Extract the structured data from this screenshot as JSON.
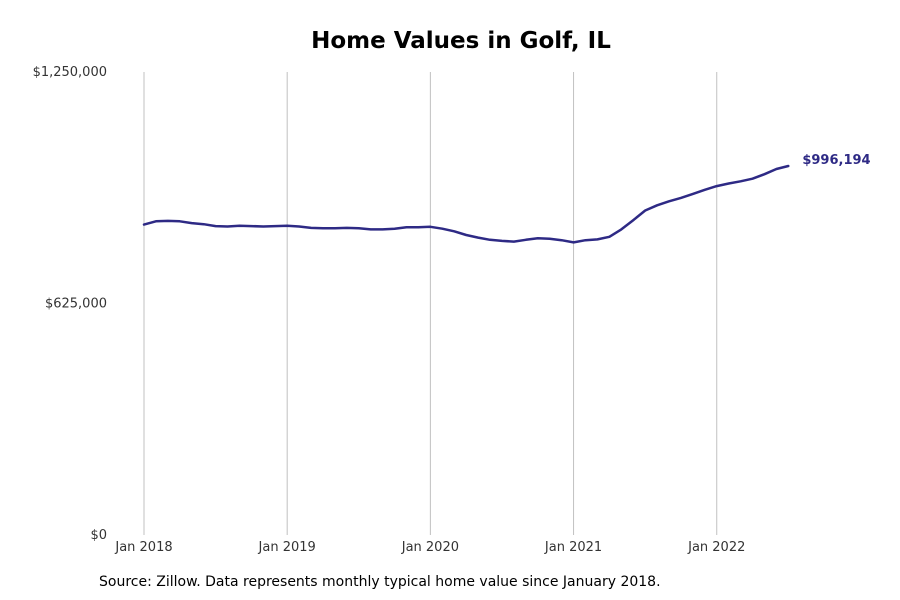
{
  "chart_data": {
    "type": "line",
    "title": "Home Values in Golf, IL",
    "xlabel": "",
    "ylabel": "",
    "xlim": [
      "2018-01",
      "2022-12"
    ],
    "ylim": [
      0,
      1250000
    ],
    "grid": {
      "x": true,
      "y": false
    },
    "legend": "none",
    "x_ticks": [
      "Jan 2018",
      "Jan 2019",
      "Jan 2020",
      "Jan 2021",
      "Jan 2022"
    ],
    "y_ticks": [
      "$0",
      "$625,000",
      "$1,250,000"
    ],
    "series": [
      {
        "color": "#2e2a85",
        "end_label": "$996,194",
        "x": [
          "2018-01",
          "2018-02",
          "2018-03",
          "2018-04",
          "2018-05",
          "2018-06",
          "2018-07",
          "2018-08",
          "2018-09",
          "2018-10",
          "2018-11",
          "2018-12",
          "2019-01",
          "2019-02",
          "2019-03",
          "2019-04",
          "2019-05",
          "2019-06",
          "2019-07",
          "2019-08",
          "2019-09",
          "2019-10",
          "2019-11",
          "2019-12",
          "2020-01",
          "2020-02",
          "2020-03",
          "2020-04",
          "2020-05",
          "2020-06",
          "2020-07",
          "2020-08",
          "2020-09",
          "2020-10",
          "2020-11",
          "2020-12",
          "2021-01",
          "2021-02",
          "2021-03",
          "2021-04",
          "2021-05",
          "2021-06",
          "2021-07",
          "2021-08",
          "2021-09",
          "2021-10",
          "2021-11",
          "2021-12",
          "2022-01",
          "2022-02",
          "2022-03",
          "2022-04",
          "2022-05",
          "2022-06",
          "2022-07"
        ],
        "y": [
          838000,
          847000,
          848000,
          847000,
          842000,
          839000,
          834000,
          833000,
          835000,
          834000,
          833000,
          834000,
          835000,
          833000,
          829000,
          828000,
          828000,
          829000,
          828000,
          825000,
          825000,
          827000,
          831000,
          831000,
          832000,
          827000,
          820000,
          810000,
          803000,
          797000,
          794000,
          792000,
          797000,
          801000,
          800000,
          796000,
          790000,
          796000,
          798000,
          805000,
          825000,
          850000,
          876000,
          890000,
          901000,
          910000,
          921000,
          932000,
          942000,
          949000,
          955000,
          962000,
          974000,
          988000,
          996194
        ]
      }
    ]
  },
  "source_note": "Source: Zillow. Data represents monthly typical home value since January 2018."
}
